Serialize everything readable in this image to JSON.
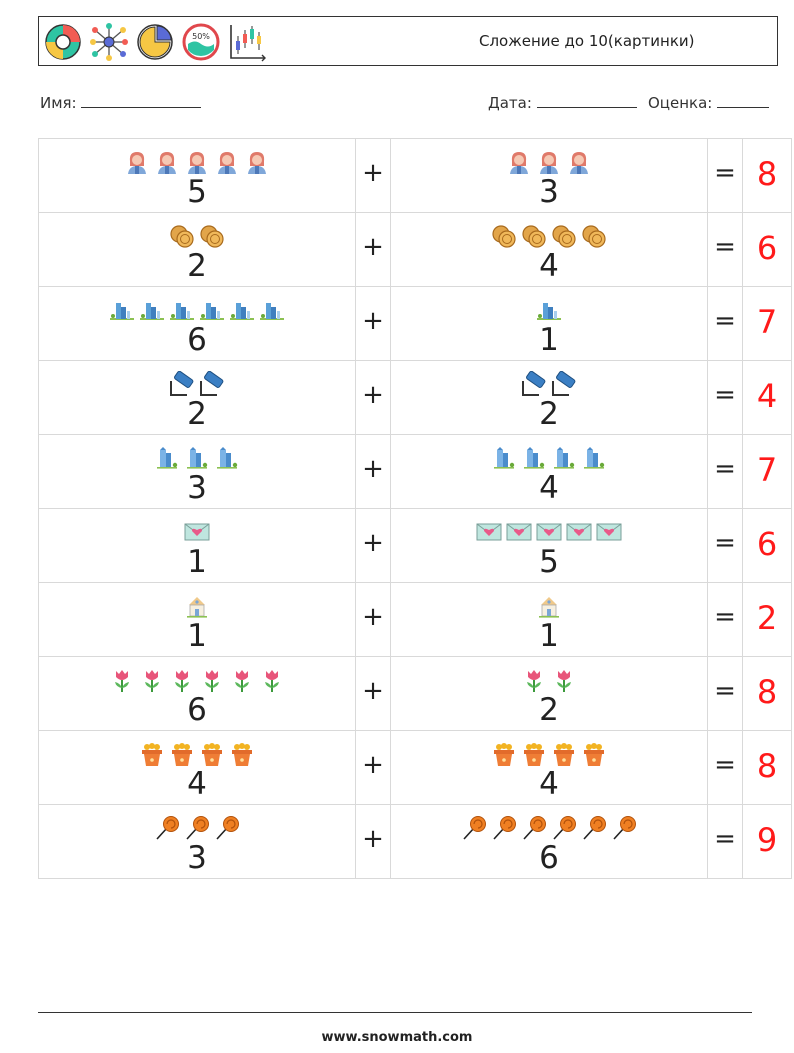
{
  "header": {
    "title": "Сложение до 10(картинки)",
    "icons": [
      "donut-chart-icon",
      "network-icon",
      "pie-chart-icon",
      "percentage-gauge-icon",
      "candlestick-chart-icon"
    ]
  },
  "fields": {
    "name_label": "Имя:",
    "date_label": "Дата:",
    "grade_label": "Оценка:"
  },
  "rows": [
    {
      "icon": "woman-avatar-icon",
      "a": 5,
      "b": 3,
      "op": "+",
      "eq": "=",
      "answer": 8
    },
    {
      "icon": "coins-icon",
      "a": 2,
      "b": 4,
      "op": "+",
      "eq": "=",
      "answer": 6
    },
    {
      "icon": "city-buildings-icon",
      "a": 6,
      "b": 1,
      "op": "+",
      "eq": "=",
      "answer": 7
    },
    {
      "icon": "usb-stick-icon",
      "a": 2,
      "b": 2,
      "op": "+",
      "eq": "=",
      "answer": 4
    },
    {
      "icon": "skyscraper-icon",
      "a": 3,
      "b": 4,
      "op": "+",
      "eq": "=",
      "answer": 7
    },
    {
      "icon": "love-letter-icon",
      "a": 1,
      "b": 5,
      "op": "+",
      "eq": "=",
      "answer": 6
    },
    {
      "icon": "house-icon",
      "a": 1,
      "b": 1,
      "op": "+",
      "eq": "=",
      "answer": 2
    },
    {
      "icon": "tulip-icon",
      "a": 6,
      "b": 2,
      "op": "+",
      "eq": "=",
      "answer": 8
    },
    {
      "icon": "flower-pot-icon",
      "a": 4,
      "b": 4,
      "op": "+",
      "eq": "=",
      "answer": 8
    },
    {
      "icon": "lollipop-icon",
      "a": 3,
      "b": 6,
      "op": "+",
      "eq": "=",
      "answer": 9
    }
  ],
  "footer": {
    "url": "www.snowmath.com"
  }
}
